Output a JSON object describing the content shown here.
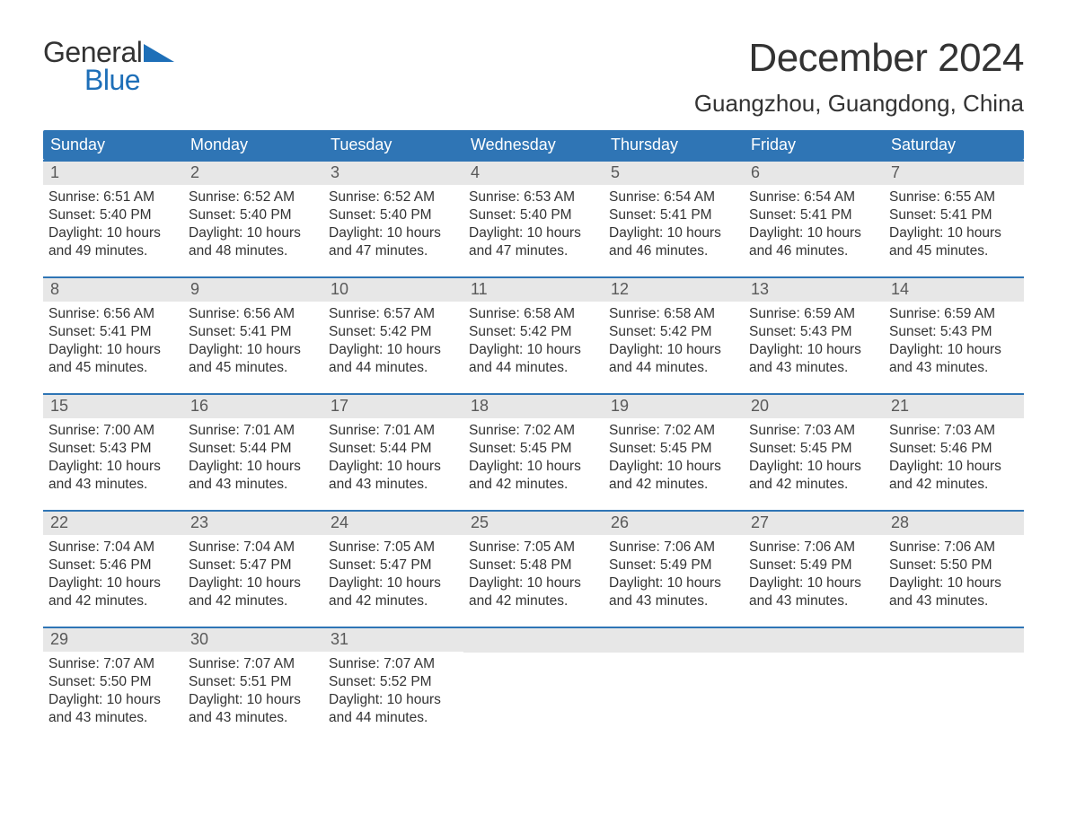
{
  "logo": {
    "text_general": "General",
    "text_blue": "Blue",
    "accent_color": "#1e6fb8"
  },
  "header": {
    "month_title": "December 2024",
    "location": "Guangzhou, Guangdong, China"
  },
  "calendar": {
    "type": "table",
    "background_color": "#ffffff",
    "header_bg_color": "#2f75b5",
    "header_text_color": "#ffffff",
    "week_border_color": "#2f75b5",
    "daynum_bg_color": "#e7e7e7",
    "daynum_text_color": "#595959",
    "body_text_color": "#333333",
    "font_family": "Arial",
    "header_fontsize": 18,
    "daynum_fontsize": 18,
    "body_fontsize": 15.5,
    "columns": [
      "Sunday",
      "Monday",
      "Tuesday",
      "Wednesday",
      "Thursday",
      "Friday",
      "Saturday"
    ],
    "labels": {
      "sunrise": "Sunrise:",
      "sunset": "Sunset:",
      "daylight": "Daylight:"
    },
    "days": [
      {
        "n": "1",
        "sunrise": "6:51 AM",
        "sunset": "5:40 PM",
        "daylight": "10 hours and 49 minutes."
      },
      {
        "n": "2",
        "sunrise": "6:52 AM",
        "sunset": "5:40 PM",
        "daylight": "10 hours and 48 minutes."
      },
      {
        "n": "3",
        "sunrise": "6:52 AM",
        "sunset": "5:40 PM",
        "daylight": "10 hours and 47 minutes."
      },
      {
        "n": "4",
        "sunrise": "6:53 AM",
        "sunset": "5:40 PM",
        "daylight": "10 hours and 47 minutes."
      },
      {
        "n": "5",
        "sunrise": "6:54 AM",
        "sunset": "5:41 PM",
        "daylight": "10 hours and 46 minutes."
      },
      {
        "n": "6",
        "sunrise": "6:54 AM",
        "sunset": "5:41 PM",
        "daylight": "10 hours and 46 minutes."
      },
      {
        "n": "7",
        "sunrise": "6:55 AM",
        "sunset": "5:41 PM",
        "daylight": "10 hours and 45 minutes."
      },
      {
        "n": "8",
        "sunrise": "6:56 AM",
        "sunset": "5:41 PM",
        "daylight": "10 hours and 45 minutes."
      },
      {
        "n": "9",
        "sunrise": "6:56 AM",
        "sunset": "5:41 PM",
        "daylight": "10 hours and 45 minutes."
      },
      {
        "n": "10",
        "sunrise": "6:57 AM",
        "sunset": "5:42 PM",
        "daylight": "10 hours and 44 minutes."
      },
      {
        "n": "11",
        "sunrise": "6:58 AM",
        "sunset": "5:42 PM",
        "daylight": "10 hours and 44 minutes."
      },
      {
        "n": "12",
        "sunrise": "6:58 AM",
        "sunset": "5:42 PM",
        "daylight": "10 hours and 44 minutes."
      },
      {
        "n": "13",
        "sunrise": "6:59 AM",
        "sunset": "5:43 PM",
        "daylight": "10 hours and 43 minutes."
      },
      {
        "n": "14",
        "sunrise": "6:59 AM",
        "sunset": "5:43 PM",
        "daylight": "10 hours and 43 minutes."
      },
      {
        "n": "15",
        "sunrise": "7:00 AM",
        "sunset": "5:43 PM",
        "daylight": "10 hours and 43 minutes."
      },
      {
        "n": "16",
        "sunrise": "7:01 AM",
        "sunset": "5:44 PM",
        "daylight": "10 hours and 43 minutes."
      },
      {
        "n": "17",
        "sunrise": "7:01 AM",
        "sunset": "5:44 PM",
        "daylight": "10 hours and 43 minutes."
      },
      {
        "n": "18",
        "sunrise": "7:02 AM",
        "sunset": "5:45 PM",
        "daylight": "10 hours and 42 minutes."
      },
      {
        "n": "19",
        "sunrise": "7:02 AM",
        "sunset": "5:45 PM",
        "daylight": "10 hours and 42 minutes."
      },
      {
        "n": "20",
        "sunrise": "7:03 AM",
        "sunset": "5:45 PM",
        "daylight": "10 hours and 42 minutes."
      },
      {
        "n": "21",
        "sunrise": "7:03 AM",
        "sunset": "5:46 PM",
        "daylight": "10 hours and 42 minutes."
      },
      {
        "n": "22",
        "sunrise": "7:04 AM",
        "sunset": "5:46 PM",
        "daylight": "10 hours and 42 minutes."
      },
      {
        "n": "23",
        "sunrise": "7:04 AM",
        "sunset": "5:47 PM",
        "daylight": "10 hours and 42 minutes."
      },
      {
        "n": "24",
        "sunrise": "7:05 AM",
        "sunset": "5:47 PM",
        "daylight": "10 hours and 42 minutes."
      },
      {
        "n": "25",
        "sunrise": "7:05 AM",
        "sunset": "5:48 PM",
        "daylight": "10 hours and 42 minutes."
      },
      {
        "n": "26",
        "sunrise": "7:06 AM",
        "sunset": "5:49 PM",
        "daylight": "10 hours and 43 minutes."
      },
      {
        "n": "27",
        "sunrise": "7:06 AM",
        "sunset": "5:49 PM",
        "daylight": "10 hours and 43 minutes."
      },
      {
        "n": "28",
        "sunrise": "7:06 AM",
        "sunset": "5:50 PM",
        "daylight": "10 hours and 43 minutes."
      },
      {
        "n": "29",
        "sunrise": "7:07 AM",
        "sunset": "5:50 PM",
        "daylight": "10 hours and 43 minutes."
      },
      {
        "n": "30",
        "sunrise": "7:07 AM",
        "sunset": "5:51 PM",
        "daylight": "10 hours and 43 minutes."
      },
      {
        "n": "31",
        "sunrise": "7:07 AM",
        "sunset": "5:52 PM",
        "daylight": "10 hours and 44 minutes."
      }
    ],
    "weeks": 5,
    "start_weekday_index": 0,
    "trailing_empty": 4
  }
}
